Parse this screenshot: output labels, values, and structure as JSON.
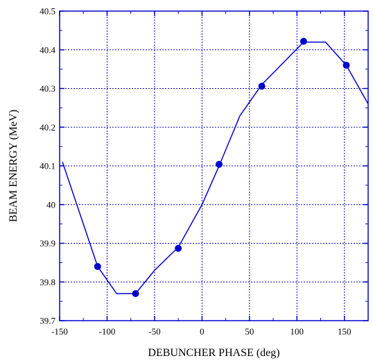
{
  "chart_data": {
    "type": "line",
    "title": "",
    "xlabel": "DEBUNCHER PHASE (deg)",
    "ylabel": "BEAM ENERGY (MeV)",
    "xlim": [
      -150,
      175
    ],
    "ylim": [
      39.7,
      40.5
    ],
    "xticks": [
      -150,
      -100,
      -50,
      0,
      50,
      100,
      150
    ],
    "xtick_labels": [
      "-150",
      "-100",
      "-50",
      "0",
      "50",
      "100",
      "150"
    ],
    "yticks": [
      39.7,
      39.8,
      39.9,
      40.0,
      40.1,
      40.2,
      40.3,
      40.4,
      40.5
    ],
    "ytick_labels": [
      "39.7",
      "39.8",
      "39.9",
      "40",
      "40.1",
      "40.2",
      "40.3",
      "40.4",
      "40.5"
    ],
    "grid": true,
    "color": "#0000cc",
    "series": [
      {
        "kind": "line",
        "x": [
          -147,
          -110,
          -90,
          -70,
          -50,
          -25,
          0,
          18,
          40,
          63,
          107,
          130,
          152,
          175
        ],
        "y": [
          40.11,
          39.84,
          39.77,
          39.77,
          39.83,
          39.89,
          40.0,
          40.1,
          40.23,
          40.31,
          40.42,
          40.42,
          40.36,
          40.26
        ]
      },
      {
        "kind": "markers",
        "x": [
          -110,
          -70,
          -25,
          18,
          63,
          107,
          152
        ],
        "y": [
          39.84,
          39.77,
          39.887,
          40.104,
          40.306,
          40.422,
          40.36
        ]
      }
    ]
  }
}
